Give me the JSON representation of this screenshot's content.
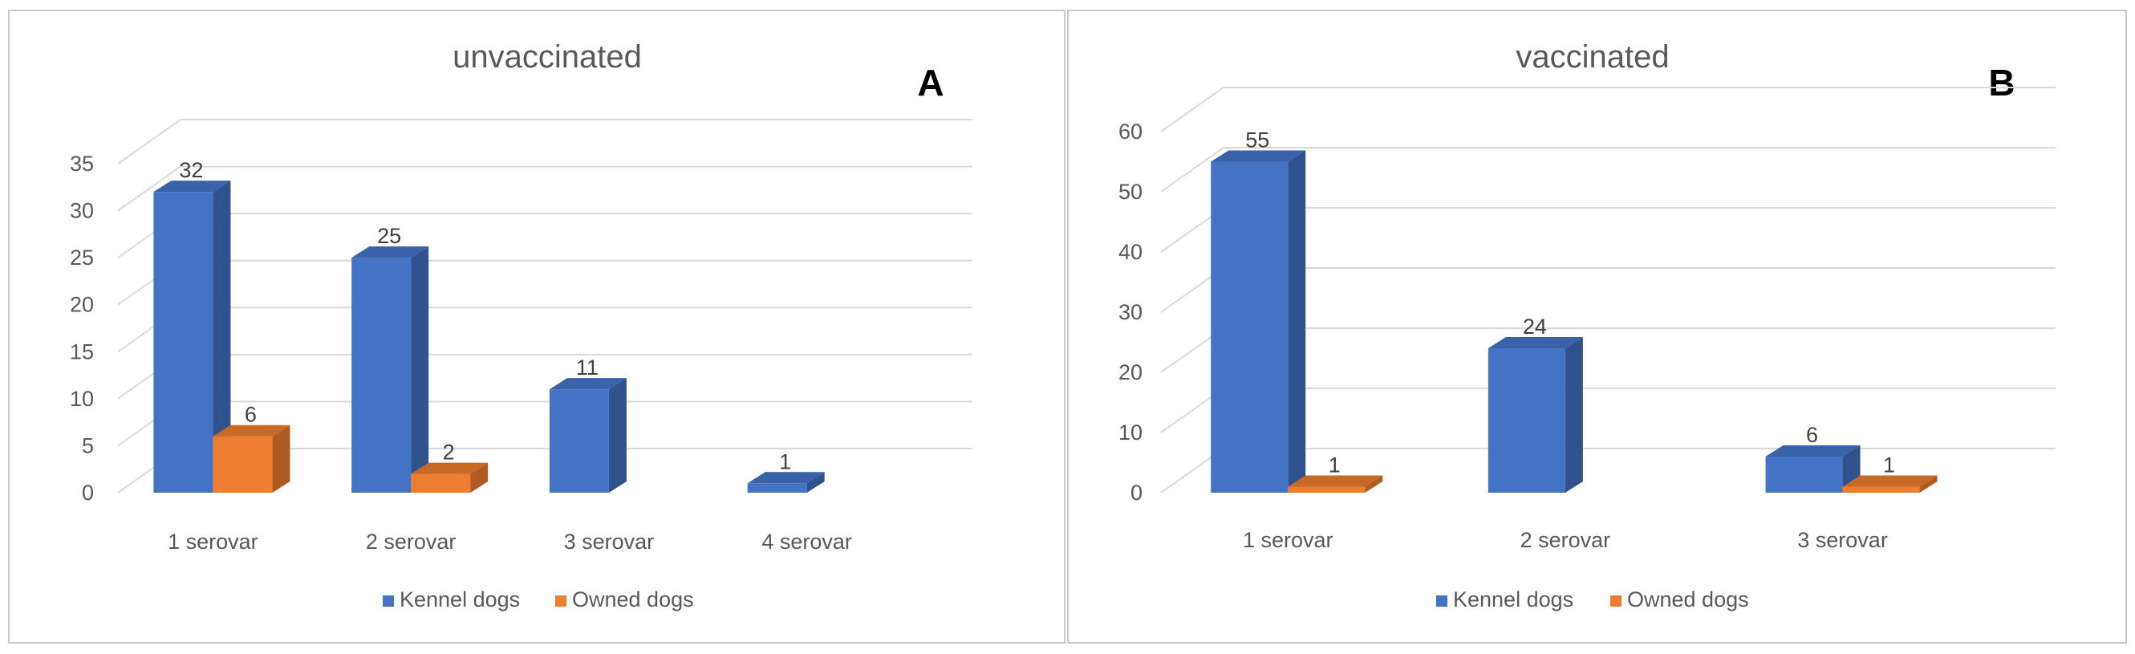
{
  "chart_data": [
    {
      "type": "bar",
      "title": "unvaccinated",
      "panel_letter": "A",
      "categories": [
        "1 serovar",
        "2 serovar",
        "3 serovar",
        "4 serovar"
      ],
      "series": [
        {
          "name": "Kennel dogs",
          "values": [
            32,
            25,
            11,
            1
          ],
          "labels": [
            "32",
            "25",
            "11",
            "1"
          ]
        },
        {
          "name": "Owned dogs",
          "values": [
            6,
            2,
            null,
            null
          ],
          "labels": [
            "6",
            "2",
            null,
            null
          ]
        }
      ],
      "ylim": [
        0,
        35
      ],
      "yticks": [
        0,
        5,
        10,
        15,
        20,
        25,
        30,
        35
      ],
      "grid": true,
      "legend": "bottom"
    },
    {
      "type": "bar",
      "title": "vaccinated",
      "panel_letter": "B",
      "categories": [
        "1 serovar",
        "2 serovar",
        "3 serovar"
      ],
      "series": [
        {
          "name": "Kennel dogs",
          "values": [
            55,
            24,
            6
          ],
          "labels": [
            "55",
            "24",
            "6"
          ]
        },
        {
          "name": "Owned dogs",
          "values": [
            1,
            null,
            1
          ],
          "labels": [
            "1",
            null,
            "1"
          ]
        }
      ],
      "ylim": [
        0,
        60
      ],
      "yticks": [
        0,
        10,
        20,
        30,
        40,
        50,
        60
      ],
      "grid": true,
      "legend": "bottom"
    }
  ],
  "colors": {
    "kennel_front": "#4472C4",
    "kennel_side": "#2F528F",
    "kennel_top": "#3A62A8",
    "owned_front": "#ED7D31",
    "owned_side": "#AE5A21",
    "owned_top": "#C76A28",
    "grid": "#D9D9D9"
  }
}
